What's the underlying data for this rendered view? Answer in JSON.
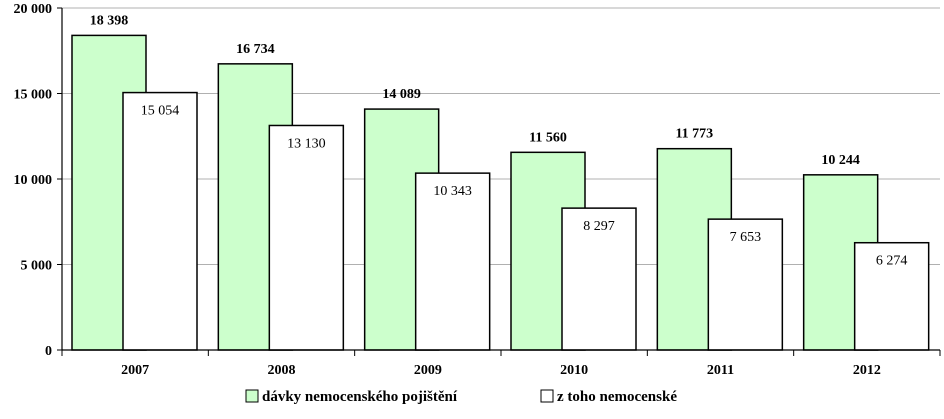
{
  "chart_data": {
    "type": "bar",
    "categories": [
      "2007",
      "2008",
      "2009",
      "2010",
      "2011",
      "2012"
    ],
    "series": [
      {
        "name": "dávky nemocenského pojištění",
        "values": [
          18398,
          16734,
          14089,
          11560,
          11773,
          10244
        ],
        "labels": [
          "18 398",
          "16 734",
          "14 089",
          "11 560",
          "11 773",
          "10 244"
        ],
        "color": "#ccffcc"
      },
      {
        "name": "z toho nemocenské",
        "values": [
          15054,
          13130,
          10343,
          8297,
          7653,
          6274
        ],
        "labels": [
          "15 054",
          "13 130",
          "10 343",
          "8 297",
          "7 653",
          "6 274"
        ],
        "color": "#ffffff"
      }
    ],
    "ylim": [
      0,
      20000
    ],
    "yticks": [
      0,
      5000,
      10000,
      15000,
      20000
    ],
    "ytick_labels": [
      "0",
      "5 000",
      "10 000",
      "15 000",
      "20 000"
    ],
    "grid": true,
    "legend_position": "bottom",
    "title": "",
    "xlabel": "",
    "ylabel": ""
  }
}
